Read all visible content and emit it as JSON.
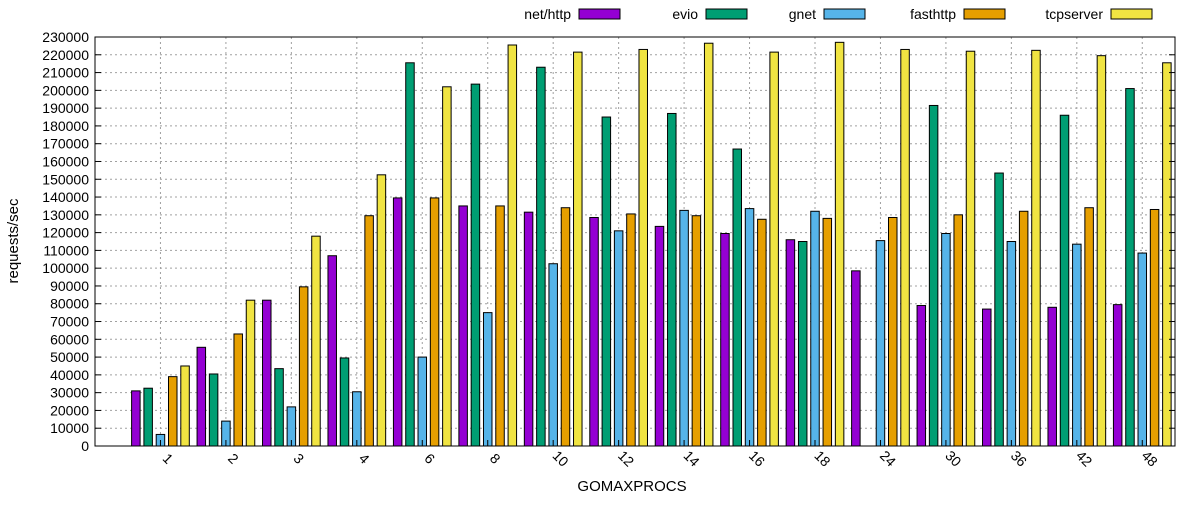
{
  "chart_data": {
    "type": "bar",
    "title": "",
    "xlabel": "GOMAXPROCS",
    "ylabel": "requests/sec",
    "ylim": [
      0,
      230000
    ],
    "ytick_step": 10000,
    "grid": true,
    "legend_position": "top",
    "categories": [
      "1",
      "2",
      "3",
      "4",
      "6",
      "8",
      "10",
      "12",
      "14",
      "16",
      "18",
      "24",
      "30",
      "36",
      "42",
      "48"
    ],
    "series": [
      {
        "name": "net/http",
        "color": "#9400d3",
        "values": [
          31000,
          55500,
          82000,
          107000,
          139500,
          135000,
          131500,
          128500,
          123500,
          119500,
          116000,
          98500,
          79000,
          77000,
          78000,
          79500
        ]
      },
      {
        "name": "evio",
        "color": "#009e73",
        "values": [
          32500,
          40500,
          43500,
          49500,
          215500,
          203500,
          213000,
          185000,
          187000,
          167000,
          115000,
          0,
          191500,
          153500,
          186000,
          201000
        ]
      },
      {
        "name": "gnet",
        "color": "#56b4e9",
        "values": [
          6500,
          14000,
          22000,
          30500,
          50000,
          75000,
          102500,
          121000,
          132500,
          133500,
          132000,
          115500,
          119500,
          115000,
          113500,
          108500
        ]
      },
      {
        "name": "fasthttp",
        "color": "#e69f00",
        "values": [
          39000,
          63000,
          89500,
          129500,
          139500,
          135000,
          134000,
          130500,
          129500,
          127500,
          128000,
          128500,
          130000,
          132000,
          134000,
          133000
        ]
      },
      {
        "name": "tcpserver",
        "color": "#f0e442",
        "values": [
          45000,
          82000,
          118000,
          152500,
          202000,
          225500,
          221500,
          223000,
          226500,
          221500,
          227000,
          223000,
          222000,
          222500,
          219500,
          215500
        ]
      }
    ]
  }
}
